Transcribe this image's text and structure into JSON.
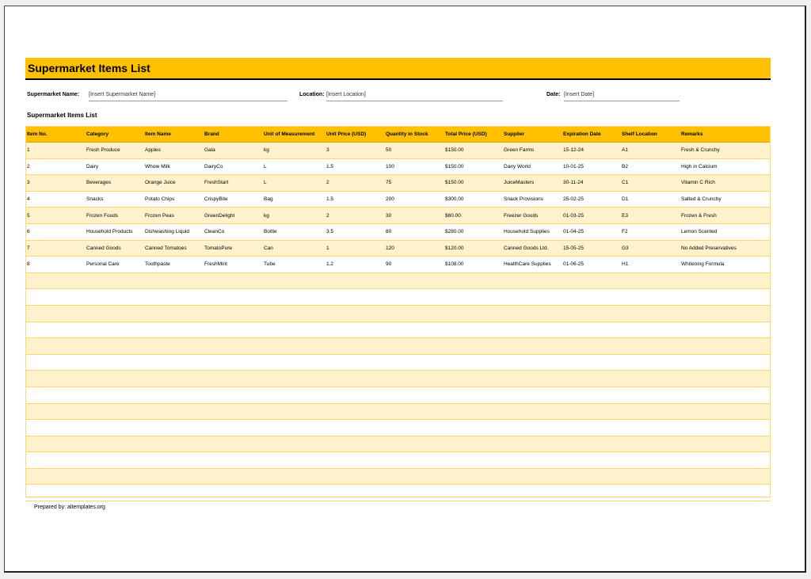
{
  "title": "Supermarket Items List",
  "meta": {
    "name_label": "Supermarket Name:",
    "name_value": "[Insert Supermarket Name]",
    "location_label": "Location:",
    "location_value": "[Insert Location]",
    "date_label": "Date:",
    "date_value": "[Insert Date]"
  },
  "section_title": "Supermarket Items List",
  "columns": [
    "Item No.",
    "Category",
    "Item Name",
    "Brand",
    "Unit of Measurement",
    "Unit Price (USD)",
    "Quantity in Stock",
    "Total Price (USD)",
    "Supplier",
    "Expiration Date",
    "Shelf Location",
    "Remarks"
  ],
  "rows": [
    [
      "1",
      "Fresh Produce",
      "Apples",
      "Gala",
      "kg",
      "3",
      "50",
      "$150.00",
      "Green Farms",
      "15-12-24",
      "A1",
      "Fresh & Crunchy"
    ],
    [
      "2",
      "Dairy",
      "Whole Milk",
      "DairyCo",
      "L",
      "1.5",
      "100",
      "$150.00",
      "Dairy World",
      "10-01-25",
      "B2",
      "High in Calcium"
    ],
    [
      "3",
      "Beverages",
      "Orange Juice",
      "FreshStart",
      "L",
      "2",
      "75",
      "$150.00",
      "JuiceMasters",
      "30-11-24",
      "C1",
      "Vitamin C Rich"
    ],
    [
      "4",
      "Snacks",
      "Potato Chips",
      "CrispyBite",
      "Bag",
      "1.5",
      "200",
      "$300.00",
      "Snack Provisions",
      "25-02-25",
      "D1",
      "Salted & Crunchy"
    ],
    [
      "5",
      "Frozen Foods",
      "Frozen Peas",
      "GreenDelight",
      "kg",
      "2",
      "30",
      "$60.00",
      "Freezer Goods",
      "01-03-25",
      "E3",
      "Frozen & Fresh"
    ],
    [
      "6",
      "Household Products",
      "Dishwashing Liquid",
      "CleanCo",
      "Bottle",
      "3.5",
      "80",
      "$280.00",
      "Household Supplies",
      "01-04-25",
      "F2",
      "Lemon Scented"
    ],
    [
      "7",
      "Canned Goods",
      "Canned Tomatoes",
      "TomatoPure",
      "Can",
      "1",
      "120",
      "$120.00",
      "Canned Goods Ltd.",
      "15-05-25",
      "G3",
      "No Added Preservatives"
    ],
    [
      "8",
      "Personal Care",
      "Toothpaste",
      "FreshMint",
      "Tube",
      "1.2",
      "90",
      "$108.00",
      "HealthCare Supplies",
      "01-06-25",
      "H1",
      "Whitening Formula"
    ]
  ],
  "footer": "Prepared by: altemplates.org"
}
